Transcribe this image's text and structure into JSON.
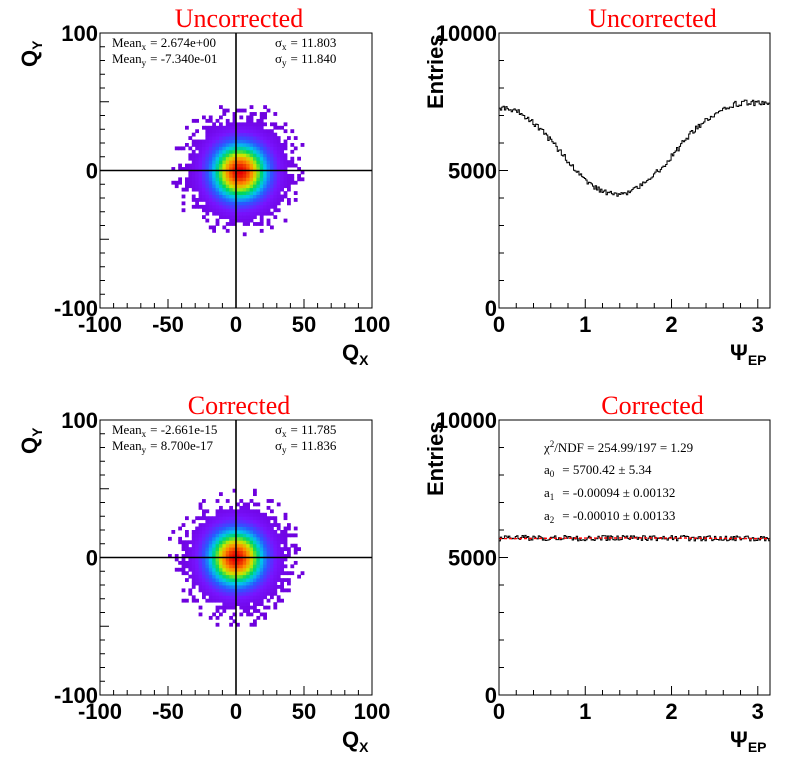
{
  "chart_data": [
    {
      "type": "heatmap",
      "title": "Uncorrected",
      "xlabel": "Q",
      "xlabel_sub": "X",
      "ylabel": "Q",
      "ylabel_sub": "Y",
      "xlim": [
        -100,
        100
      ],
      "ylim": [
        -100,
        100
      ],
      "xticks": [
        "-100",
        "-50",
        "0",
        "50",
        "100"
      ],
      "yticks": [
        "-100",
        "0",
        "100"
      ],
      "distribution": {
        "center_x": 2.674,
        "center_y": -0.734,
        "sigma_x": 11.803,
        "sigma_y": 11.84,
        "extent": 50
      },
      "stats": {
        "mean_x_label": "Mean",
        "mean_x_sub": "x",
        "mean_x_value": "= 2.674e+00",
        "mean_y_label": "Mean",
        "mean_y_sub": "y",
        "mean_y_value": "= -7.340e-01",
        "sigma_x_label": "σ",
        "sigma_x_sub": "x",
        "sigma_x_value": "= 11.803",
        "sigma_y_label": "σ",
        "sigma_y_sub": "y",
        "sigma_y_value": "= 11.840"
      }
    },
    {
      "type": "line",
      "title": "Uncorrected",
      "xlabel": "Ψ",
      "xlabel_sub": "EP",
      "ylabel": "Entries",
      "xlim": [
        0,
        3.1416
      ],
      "ylim": [
        0,
        10000
      ],
      "xticks": [
        0,
        1,
        2,
        3
      ],
      "yticks": [
        0,
        5000,
        10000
      ],
      "series": [
        {
          "x": [
            0,
            0.2,
            0.4,
            0.6,
            0.8,
            1.0,
            1.2,
            1.4,
            1.6,
            1.8,
            2.0,
            2.2,
            2.4,
            2.6,
            2.8,
            3.0,
            3.14
          ],
          "values": [
            7300,
            7150,
            6750,
            6100,
            5350,
            4650,
            4250,
            4150,
            4350,
            4850,
            5500,
            6250,
            6850,
            7250,
            7450,
            7450,
            7350
          ]
        }
      ]
    },
    {
      "type": "heatmap",
      "title": "Corrected",
      "xlabel": "Q",
      "xlabel_sub": "X",
      "ylabel": "Q",
      "ylabel_sub": "Y",
      "xlim": [
        -100,
        100
      ],
      "ylim": [
        -100,
        100
      ],
      "xticks": [
        "-100",
        "-50",
        "0",
        "50",
        "100"
      ],
      "yticks": [
        "-100",
        "0",
        "100"
      ],
      "distribution": {
        "center_x": 0,
        "center_y": 0,
        "sigma_x": 11.785,
        "sigma_y": 11.836,
        "extent": 50
      },
      "stats": {
        "mean_x_label": "Mean",
        "mean_x_sub": "x",
        "mean_x_value": "= -2.661e-15",
        "mean_y_label": "Mean",
        "mean_y_sub": "y",
        "mean_y_value": "= 8.700e-17",
        "sigma_x_label": "σ",
        "sigma_x_sub": "x",
        "sigma_x_value": "= 11.785",
        "sigma_y_label": "σ",
        "sigma_y_sub": "y",
        "sigma_y_value": "= 11.836"
      }
    },
    {
      "type": "line",
      "title": "Corrected",
      "xlabel": "Ψ",
      "xlabel_sub": "EP",
      "ylabel": "Entries",
      "xlim": [
        0,
        3.1416
      ],
      "ylim": [
        0,
        10000
      ],
      "xticks": [
        0,
        1,
        2,
        3
      ],
      "yticks": [
        0,
        5000,
        10000
      ],
      "series": [
        {
          "x": [
            0,
            0.5,
            1.0,
            1.5,
            2.0,
            2.5,
            3.0,
            3.14
          ],
          "values": [
            5700,
            5710,
            5695,
            5700,
            5705,
            5690,
            5700,
            5700
          ]
        }
      ],
      "fit": {
        "a0": 5700.42,
        "a1": -0.00094,
        "a2": -0.0001,
        "color": "#ff0000"
      },
      "stats": {
        "chi2_label": "χ",
        "chi2_sup": "2",
        "chi2_text": "/NDF    = 254.99/197  =  1.29",
        "params": [
          {
            "label": "a",
            "sub": "0",
            "value": "= 5700.42 ± 5.34"
          },
          {
            "label": "a",
            "sub": "1",
            "value": "= -0.00094 ± 0.00132"
          },
          {
            "label": "a",
            "sub": "2",
            "value": "= -0.00010 ± 0.00133"
          }
        ]
      }
    }
  ]
}
